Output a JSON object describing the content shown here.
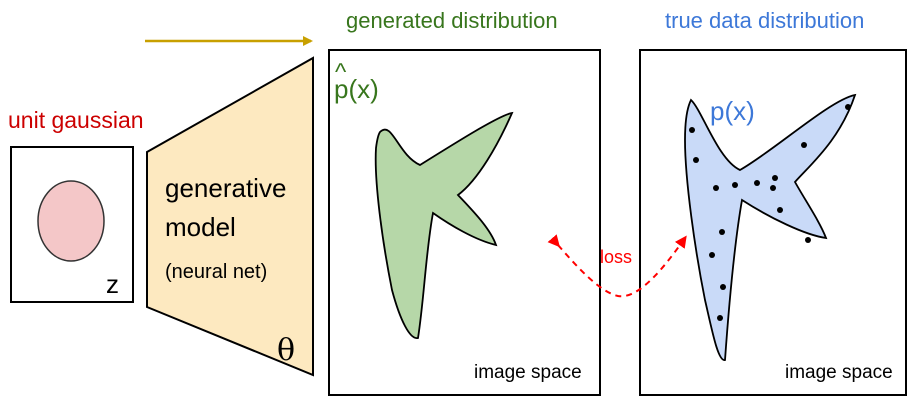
{
  "labels": {
    "unit_gaussian": "unit gaussian",
    "z": "z",
    "model_line1": "generative",
    "model_line2": "model",
    "model_line3": "(neural net)",
    "theta": "θ",
    "generated_distribution": "generated distribution",
    "p_hat": "p(x)",
    "hat": "^",
    "true_data_distribution": "true data distribution",
    "p": "p(x)",
    "loss": "loss",
    "image_space_1": "image space",
    "image_space_2": "image space"
  },
  "colors": {
    "unit_gaussian_text": "#cc0000",
    "gaussian_fill": "#f4c7c8",
    "gaussian_stroke": "#333333",
    "model_fill": "#fde9c0",
    "arrow": "#c8a000",
    "generated_text": "#38761d",
    "generated_fill": "#b6d7a8",
    "true_text": "#3d78d8",
    "true_fill": "#c9daf8",
    "loss": "#ff0000",
    "ink": "#000000"
  }
}
